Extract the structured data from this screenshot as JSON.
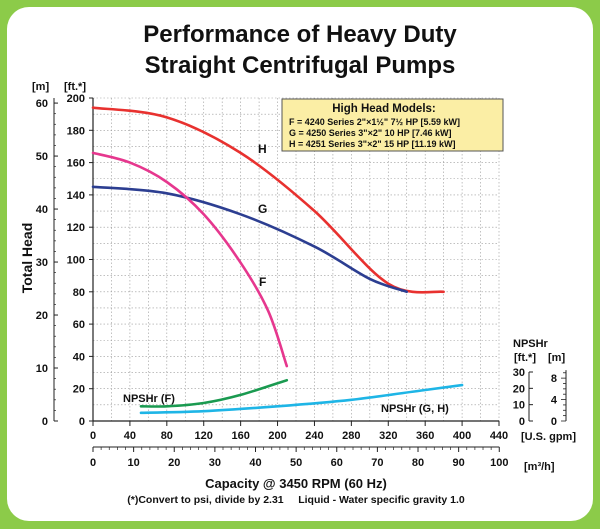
{
  "chart_data": {
    "type": "line",
    "title_line1": "Performance of Heavy Duty",
    "title_line2": "Straight Centrifugal Pumps",
    "ylabel": "Total Head",
    "y_unit_m": "[m]",
    "y_unit_ft": "[ft.*]",
    "xlabel": "Capacity @ 3450 RPM (60 Hz)",
    "x_unit_gpm": "[U.S. gpm]",
    "x_unit_m3h": "[m³/h]",
    "footnote": "(*)Convert to psi, divide by 2.31     Liquid - Water specific gravity 1.0",
    "xlim": [
      0,
      440
    ],
    "ylim_ft": [
      0,
      200
    ],
    "x_ticks_gpm": [
      "0",
      "40",
      "80",
      "120",
      "160",
      "200",
      "240",
      "280",
      "320",
      "360",
      "400",
      "440"
    ],
    "y_ticks_ft": [
      "0",
      "20",
      "40",
      "60",
      "80",
      "100",
      "120",
      "140",
      "160",
      "180",
      "200"
    ],
    "y_ticks_m": [
      "0",
      "10",
      "20",
      "30",
      "40",
      "50",
      "60"
    ],
    "x_ticks_m3h": [
      "0",
      "10",
      "20",
      "30",
      "40",
      "50",
      "60",
      "70",
      "80",
      "90",
      "100"
    ],
    "npshr_axis": {
      "title": "NPSHr",
      "unit_ft": "[ft.*]",
      "unit_m": "[m]",
      "ticks_ft": [
        "0",
        "10",
        "20",
        "30"
      ],
      "ticks_m": [
        "0",
        "4",
        "8"
      ]
    },
    "legend": {
      "title": "High Head Models:",
      "lines": [
        "F = 4240 Series 2\"×1½\" 7½ HP [5.59 kW]",
        "G = 4250 Series 3\"×2\" 10 HP [7.46 kW]",
        "H = 4251 Series 3\"×2\" 15 HP [11.19 kW]"
      ]
    },
    "series": [
      {
        "name": "H",
        "color": "#e8312f",
        "x": [
          0,
          80,
          160,
          240,
          320,
          380
        ],
        "y": [
          194,
          188,
          166,
          130,
          85,
          80
        ]
      },
      {
        "name": "G",
        "color": "#2c3e91",
        "x": [
          0,
          80,
          160,
          240,
          300,
          340
        ],
        "y": [
          145,
          141,
          128,
          108,
          88,
          80
        ]
      },
      {
        "name": "F",
        "color": "#e6378e",
        "x": [
          0,
          40,
          80,
          120,
          160,
          190,
          210
        ],
        "y": [
          166,
          160,
          148,
          128,
          98,
          68,
          34
        ]
      }
    ],
    "npshr_series": [
      {
        "name": "NPSHr (F)",
        "color": "#1a9a50",
        "x": [
          52,
          80,
          120,
          160,
          210
        ],
        "y_ft": [
          9,
          9,
          11,
          16,
          25
        ]
      },
      {
        "name": "NPSHr (G, H)",
        "color": "#1eb5e6",
        "x": [
          52,
          120,
          200,
          280,
          360,
          400
        ],
        "y_ft": [
          5,
          6,
          9,
          13,
          19,
          22
        ]
      }
    ]
  }
}
